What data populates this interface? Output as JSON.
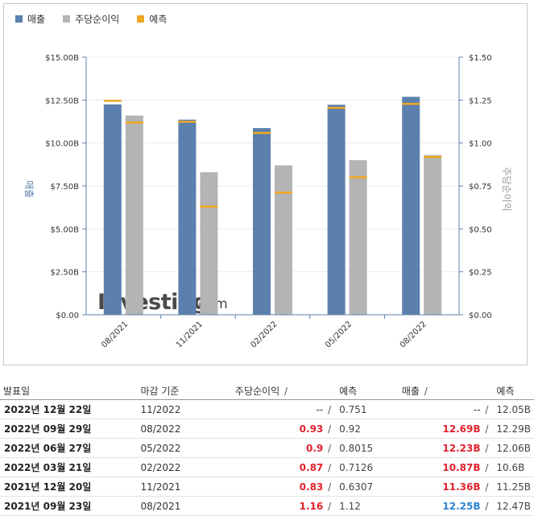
{
  "legend": [
    {
      "label": "매출",
      "color": "#5b80ad"
    },
    {
      "label": "주당순이익",
      "color": "#b4b4b4"
    },
    {
      "label": "예측",
      "color": "#f0a823"
    }
  ],
  "chart_data": {
    "type": "bar",
    "categories": [
      "08/2021",
      "11/2021",
      "02/2022",
      "05/2022",
      "08/2022"
    ],
    "series": [
      {
        "name": "매출",
        "axis": "left",
        "values": [
          12.25,
          11.36,
          10.87,
          12.23,
          12.69
        ],
        "color": "#5b80ad"
      },
      {
        "name": "주당순이익",
        "axis": "right",
        "values": [
          1.16,
          0.83,
          0.87,
          0.9,
          0.93
        ],
        "color": "#b4b4b4"
      }
    ],
    "forecast": {
      "name": "예측",
      "revenue": [
        12.47,
        11.25,
        10.6,
        12.06,
        12.29
      ],
      "eps": [
        1.12,
        0.6307,
        0.7126,
        0.8015,
        0.92
      ],
      "color": "#f0a823"
    },
    "y_left": {
      "label": "매출",
      "ylim": [
        0,
        15
      ],
      "ticks": [
        "$0.00",
        "$2.50B",
        "$5.00B",
        "$7.50B",
        "$10.00B",
        "$12.50B",
        "$15.00B"
      ]
    },
    "y_right": {
      "label": "주당순이익",
      "ylim": [
        0,
        1.5
      ],
      "ticks": [
        "$0.00",
        "$0.25",
        "$0.50",
        "$0.75",
        "$1.00",
        "$1.25",
        "$1.50"
      ]
    },
    "watermark": {
      "brand": "Investing",
      "suffix": ".com"
    }
  },
  "table": {
    "headers": {
      "date": "발표일",
      "period": "마감 기준",
      "eps": "주당순이익",
      "eps_fc": "예측",
      "rev": "매출",
      "rev_fc": "예측"
    },
    "slash": "/",
    "rows": [
      {
        "date": "2022년 12월 22일",
        "period": "11/2022",
        "eps": "--",
        "eps_color": "",
        "eps_fc": "0.751",
        "rev": "--",
        "rev_color": "",
        "rev_fc": "12.05B"
      },
      {
        "date": "2022년 09월 29일",
        "period": "08/2022",
        "eps": "0.93",
        "eps_color": "red",
        "eps_fc": "0.92",
        "rev": "12.69B",
        "rev_color": "red",
        "rev_fc": "12.29B"
      },
      {
        "date": "2022년 06월 27일",
        "period": "05/2022",
        "eps": "0.9",
        "eps_color": "red",
        "eps_fc": "0.8015",
        "rev": "12.23B",
        "rev_color": "red",
        "rev_fc": "12.06B"
      },
      {
        "date": "2022년 03월 21일",
        "period": "02/2022",
        "eps": "0.87",
        "eps_color": "red",
        "eps_fc": "0.7126",
        "rev": "10.87B",
        "rev_color": "red",
        "rev_fc": "10.6B"
      },
      {
        "date": "2021년 12월 20일",
        "period": "11/2021",
        "eps": "0.83",
        "eps_color": "red",
        "eps_fc": "0.6307",
        "rev": "11.36B",
        "rev_color": "red",
        "rev_fc": "11.25B"
      },
      {
        "date": "2021년 09월 23일",
        "period": "08/2021",
        "eps": "1.16",
        "eps_color": "red",
        "eps_fc": "1.12",
        "rev": "12.25B",
        "rev_color": "blue",
        "rev_fc": "12.47B"
      }
    ]
  }
}
